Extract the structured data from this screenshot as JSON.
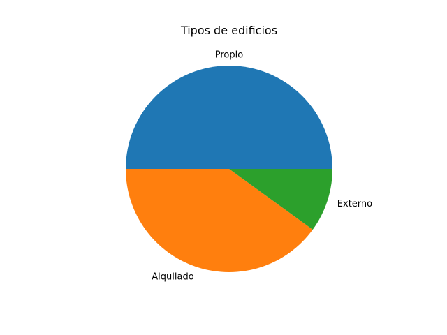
{
  "chart_data": {
    "type": "pie",
    "title": "Tipos de edificios",
    "labels": [
      "Propio",
      "Alquilado",
      "Externo"
    ],
    "values": [
      50,
      40,
      10
    ],
    "colors": [
      "#1f77b4",
      "#ff7f0e",
      "#2ca02c"
    ],
    "start_angle_deg": 0,
    "direction": "counterclockwise",
    "legend": "none"
  }
}
